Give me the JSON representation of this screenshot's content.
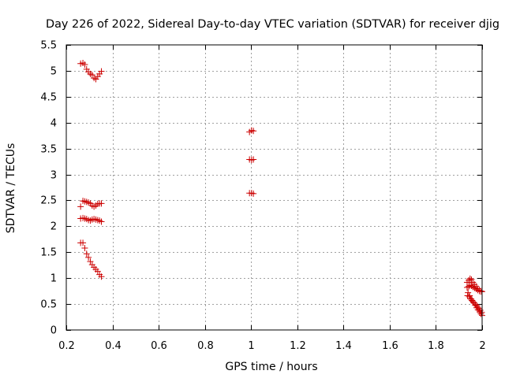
{
  "chart_data": {
    "type": "scatter",
    "title": "Day 226 of 2022, Sidereal Day-to-day VTEC variation (SDTVAR) for receiver djig",
    "xlabel": "GPS time / hours",
    "ylabel": "SDTVAR / TECUs",
    "xlim": [
      0.2,
      2.0
    ],
    "ylim": [
      0,
      5.5
    ],
    "x_ticks": [
      0.2,
      0.4,
      0.6,
      0.8,
      1.0,
      1.2,
      1.4,
      1.6,
      1.8,
      2.0
    ],
    "x_tick_labels": [
      "0.2",
      "0.4",
      "0.6",
      "0.8",
      "1",
      "1.2",
      "1.4",
      "1.6",
      "1.8",
      "2"
    ],
    "y_ticks": [
      0,
      0.5,
      1.0,
      1.5,
      2.0,
      2.5,
      3.0,
      3.5,
      4.0,
      4.5,
      5.0,
      5.5
    ],
    "y_tick_labels": [
      "0",
      "0.5",
      "1",
      "1.5",
      "2",
      "2.5",
      "3",
      "3.5",
      "4",
      "4.5",
      "5",
      "5.5"
    ],
    "grid": true,
    "marker": "plus",
    "marker_color": "#cc0000",
    "series": [
      {
        "points": [
          [
            0.262,
            5.14
          ],
          [
            0.272,
            5.15
          ],
          [
            0.28,
            5.12
          ],
          [
            0.288,
            5.03
          ],
          [
            0.296,
            4.98
          ],
          [
            0.304,
            4.94
          ],
          [
            0.312,
            4.92
          ],
          [
            0.32,
            4.86
          ],
          [
            0.328,
            4.84
          ],
          [
            0.336,
            4.89
          ],
          [
            0.344,
            4.94
          ],
          [
            0.352,
            4.99
          ],
          [
            0.262,
            2.38
          ],
          [
            0.272,
            2.49
          ],
          [
            0.28,
            2.48
          ],
          [
            0.288,
            2.47
          ],
          [
            0.296,
            2.46
          ],
          [
            0.304,
            2.44
          ],
          [
            0.312,
            2.4
          ],
          [
            0.32,
            2.38
          ],
          [
            0.328,
            2.4
          ],
          [
            0.336,
            2.43
          ],
          [
            0.344,
            2.44
          ],
          [
            0.352,
            2.44
          ],
          [
            0.262,
            2.15
          ],
          [
            0.272,
            2.16
          ],
          [
            0.28,
            2.15
          ],
          [
            0.288,
            2.14
          ],
          [
            0.296,
            2.12
          ],
          [
            0.304,
            2.11
          ],
          [
            0.312,
            2.13
          ],
          [
            0.32,
            2.14
          ],
          [
            0.328,
            2.13
          ],
          [
            0.336,
            2.12
          ],
          [
            0.344,
            2.11
          ],
          [
            0.352,
            2.09
          ],
          [
            0.262,
            1.68
          ],
          [
            0.272,
            1.68
          ],
          [
            0.28,
            1.58
          ],
          [
            0.288,
            1.47
          ],
          [
            0.296,
            1.4
          ],
          [
            0.304,
            1.32
          ],
          [
            0.312,
            1.26
          ],
          [
            0.32,
            1.21
          ],
          [
            0.328,
            1.17
          ],
          [
            0.336,
            1.13
          ],
          [
            0.344,
            1.07
          ],
          [
            0.352,
            1.03
          ],
          [
            0.993,
            3.82
          ],
          [
            1.002,
            3.85
          ],
          [
            1.01,
            3.84
          ],
          [
            0.993,
            3.29
          ],
          [
            1.002,
            3.28
          ],
          [
            1.01,
            3.29
          ],
          [
            0.993,
            2.64
          ],
          [
            1.002,
            2.64
          ],
          [
            1.01,
            2.63
          ],
          [
            1.935,
            0.92
          ],
          [
            1.942,
            0.96
          ],
          [
            1.948,
            0.99
          ],
          [
            1.954,
            0.97
          ],
          [
            1.96,
            0.92
          ],
          [
            1.967,
            0.88
          ],
          [
            1.974,
            0.84
          ],
          [
            1.981,
            0.8
          ],
          [
            1.988,
            0.77
          ],
          [
            1.995,
            0.75
          ],
          [
            2.0,
            0.74
          ],
          [
            1.935,
            0.82
          ],
          [
            1.942,
            0.84
          ],
          [
            1.948,
            0.86
          ],
          [
            1.954,
            0.85
          ],
          [
            1.96,
            0.83
          ],
          [
            1.967,
            0.81
          ],
          [
            1.974,
            0.79
          ],
          [
            1.981,
            0.77
          ],
          [
            1.988,
            0.75
          ],
          [
            1.995,
            0.74
          ],
          [
            1.937,
            0.66
          ],
          [
            1.944,
            0.64
          ],
          [
            1.95,
            0.6
          ],
          [
            1.956,
            0.57
          ],
          [
            1.963,
            0.53
          ],
          [
            1.97,
            0.48
          ],
          [
            1.976,
            0.43
          ],
          [
            1.982,
            0.39
          ],
          [
            1.989,
            0.35
          ],
          [
            1.995,
            0.31
          ],
          [
            2.0,
            0.28
          ],
          [
            1.939,
            0.72
          ],
          [
            1.946,
            0.66
          ],
          [
            1.952,
            0.6
          ],
          [
            1.958,
            0.56
          ],
          [
            1.965,
            0.52
          ],
          [
            1.972,
            0.49
          ],
          [
            1.979,
            0.46
          ],
          [
            1.986,
            0.42
          ],
          [
            1.992,
            0.38
          ],
          [
            1.998,
            0.34
          ]
        ]
      }
    ]
  }
}
